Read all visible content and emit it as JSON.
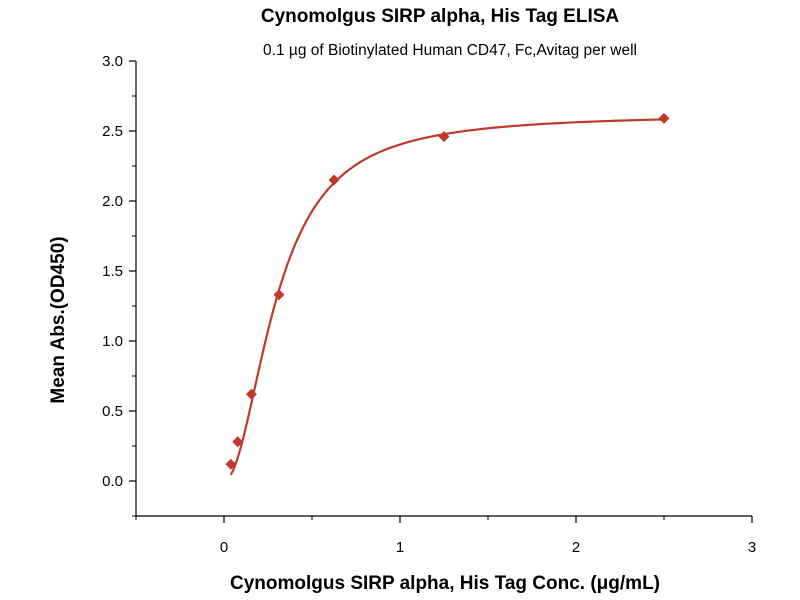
{
  "chart_data": {
    "type": "scatter",
    "title": "Cynomolgus SIRP alpha, His Tag ELISA",
    "subtitle": "0.1 µg of Biotinylated Human CD47, Fc,Avitag per well",
    "xlabel": "Cynomolgus SIRP alpha, His Tag Conc. (μg/mL)",
    "ylabel": "Mean Abs.(OD450)",
    "xlim": [
      -0.5,
      3
    ],
    "ylim": [
      -0.25,
      3.0
    ],
    "xticks": [
      0,
      1,
      2,
      3
    ],
    "yticks": [
      0.0,
      0.5,
      1.0,
      1.5,
      2.0,
      2.5,
      3.0
    ],
    "xtick_labels": [
      "0",
      "1",
      "2",
      "3"
    ],
    "ytick_labels": [
      "0.0",
      "0.5",
      "1.0",
      "1.5",
      "2.0",
      "2.5",
      "3.0"
    ],
    "grid": false,
    "legend": "none",
    "series": [
      {
        "x": [
          0.039,
          0.078,
          0.156,
          0.3125,
          0.625,
          1.25,
          2.5
        ],
        "y": [
          0.12,
          0.28,
          0.62,
          1.33,
          2.15,
          2.46,
          2.59
        ],
        "color": "#c0392b",
        "marker": "diamond",
        "fit": {
          "type": "4PL",
          "bottom": 0.0,
          "top": 2.62,
          "ec50": 0.3,
          "hill": 2.0,
          "x_range": [
            0.039,
            2.5
          ]
        }
      }
    ]
  }
}
